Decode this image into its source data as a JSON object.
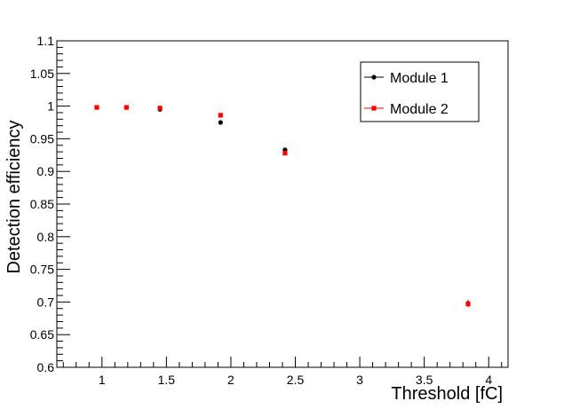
{
  "chart_data": {
    "type": "scatter",
    "title": "",
    "xlabel": "Threshold [fC]",
    "ylabel": "Detection efficiency",
    "xlim": [
      0.65,
      4.15
    ],
    "ylim": [
      0.6,
      1.1
    ],
    "x_ticks": [
      1,
      1.5,
      2,
      2.5,
      3,
      3.5,
      4
    ],
    "x_tick_labels": [
      "1",
      "1.5",
      "2",
      "2.5",
      "3",
      "3.5",
      "4"
    ],
    "y_ticks": [
      0.6,
      0.65,
      0.7,
      0.75,
      0.8,
      0.85,
      0.9,
      0.95,
      1,
      1.05,
      1.1
    ],
    "y_tick_labels": [
      "0.6",
      "0.65",
      "0.7",
      "0.75",
      "0.8",
      "0.85",
      "0.9",
      "0.95",
      "1",
      "1.05",
      "1.1"
    ],
    "grid": false,
    "legend_position": "top-right",
    "series": [
      {
        "name": "Module 1",
        "color": "#000000",
        "marker": "circle",
        "x": [
          0.96,
          1.19,
          1.45,
          1.92,
          2.42,
          3.84
        ],
        "y": [
          0.998,
          0.998,
          0.995,
          0.975,
          0.933,
          0.698
        ],
        "yerr": [
          0.002,
          0.002,
          0.002,
          0.002,
          0.003,
          0.005
        ]
      },
      {
        "name": "Module 2",
        "color": "#ff0000",
        "marker": "square",
        "x": [
          0.96,
          1.19,
          1.45,
          1.92,
          2.42,
          3.84
        ],
        "y": [
          0.998,
          0.998,
          0.997,
          0.986,
          0.928,
          0.697
        ],
        "yerr": [
          0.002,
          0.002,
          0.002,
          0.002,
          0.003,
          0.005
        ]
      }
    ]
  }
}
